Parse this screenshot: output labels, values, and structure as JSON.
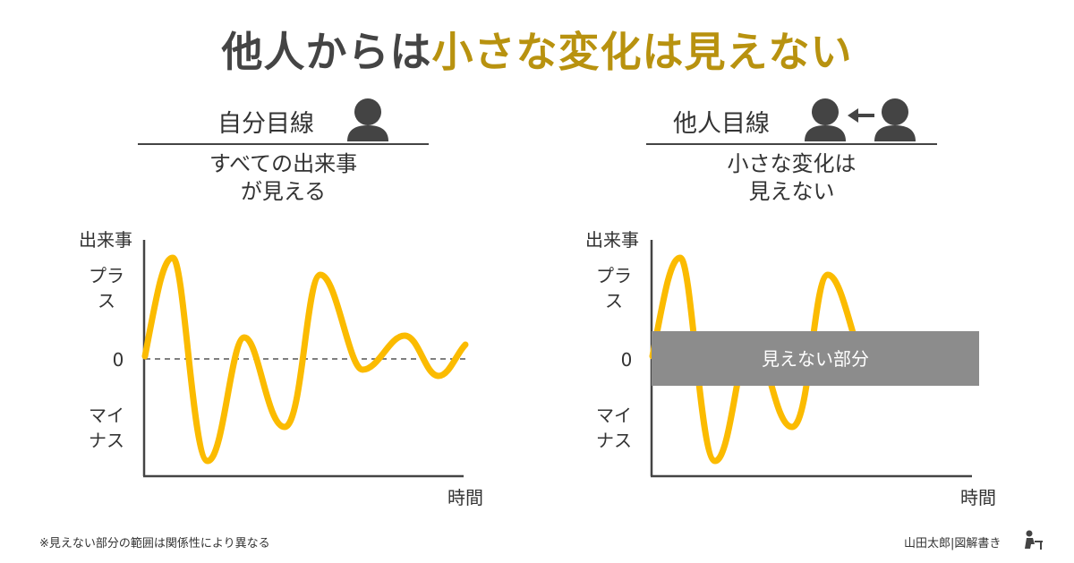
{
  "title": {
    "part1": "他人からは",
    "part2": "小さな変化は見えない"
  },
  "left_panel": {
    "heading": "自分目線",
    "description_line1": "すべての出来事",
    "description_line2": "が見える",
    "y_axis_title": "出来事",
    "y_plus_line1": "プラ",
    "y_plus_line2": "ス",
    "y_zero": "0",
    "y_minus_line1": "マイ",
    "y_minus_line2": "ナス",
    "x_axis_title": "時間"
  },
  "right_panel": {
    "heading": "他人目線",
    "description_line1": "小さな変化は",
    "description_line2": "見えない",
    "y_axis_title": "出来事",
    "y_plus_line1": "プラ",
    "y_plus_line2": "ス",
    "y_zero": "0",
    "y_minus_line1": "マイ",
    "y_minus_line2": "ナス",
    "x_axis_title": "時間",
    "hidden_band_label": "見えない部分"
  },
  "footer": {
    "note": "※見えない部分の範囲は関係性により異なる",
    "credit": "山田太郎|図解書き"
  },
  "colors": {
    "wave": "#fbbb00",
    "band": "#8c8c8c",
    "title_highlight": "#b8920f",
    "icon": "#444444"
  },
  "icons": {
    "self": "person-icon",
    "others": "person-icon",
    "arrow": "arrow-left-icon",
    "credit": "person-at-desk-icon"
  }
}
